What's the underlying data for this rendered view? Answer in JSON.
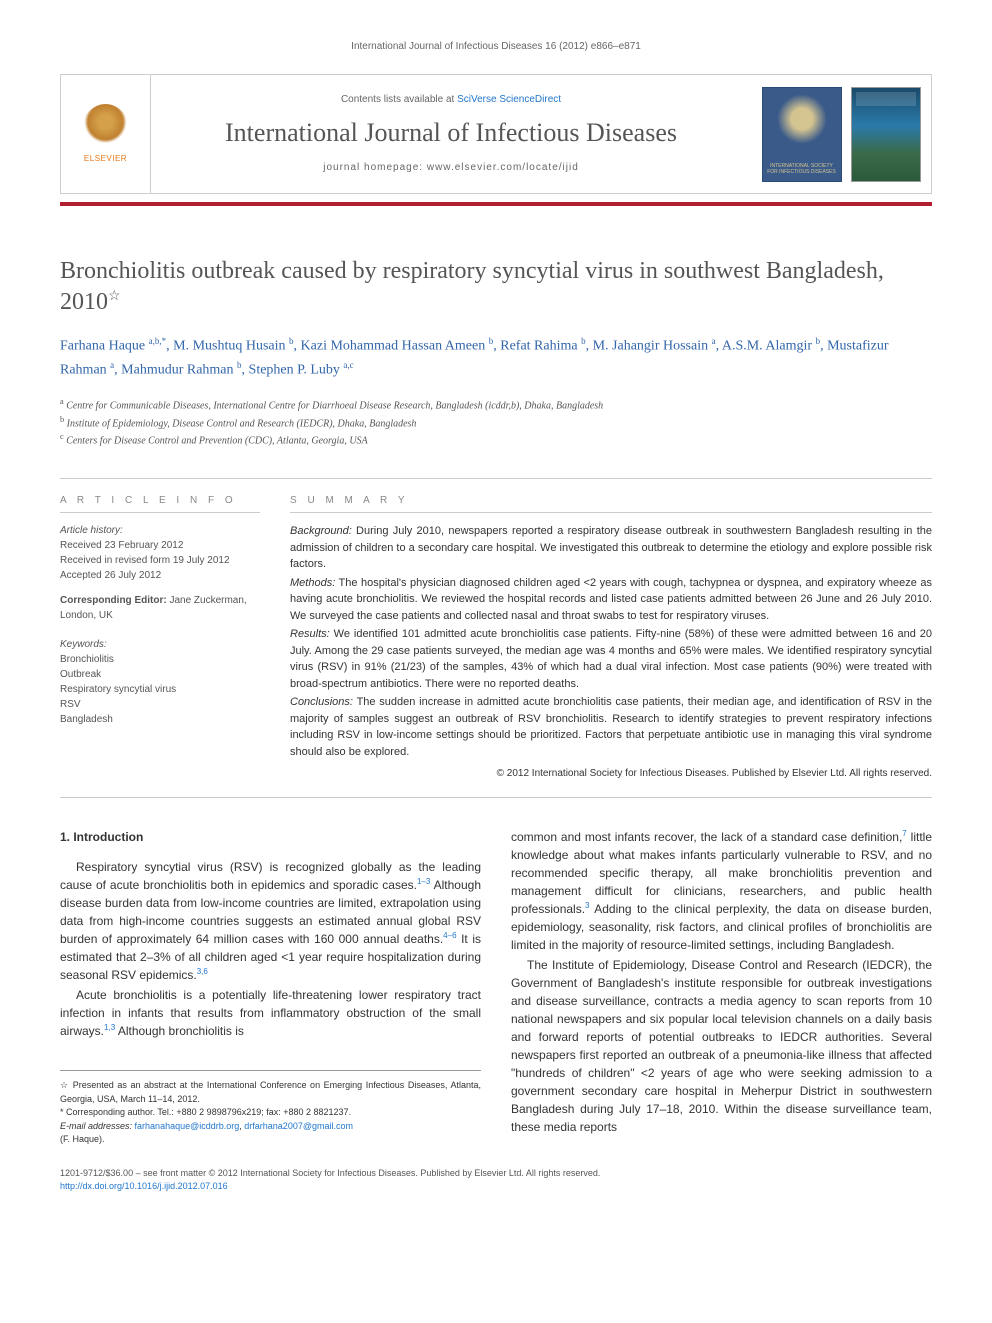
{
  "running_header": "International Journal of Infectious Diseases 16 (2012) e866–e871",
  "masthead": {
    "contents_prefix": "Contents lists available at ",
    "contents_link": "SciVerse ScienceDirect",
    "journal_name": "International Journal of Infectious Diseases",
    "homepage_prefix": "journal homepage: ",
    "homepage_url": "www.elsevier.com/locate/ijid",
    "elsevier_label": "ELSEVIER",
    "society_label": "INTERNATIONAL SOCIETY FOR INFECTIOUS DISEASES"
  },
  "title": "Bronchiolitis outbreak caused by respiratory syncytial virus in southwest Bangladesh, 2010",
  "title_star": "☆",
  "authors_html": "Farhana Haque <sup>a,b,*</sup>, M. Mushtuq Husain <sup>b</sup>, Kazi Mohammad Hassan Ameen <sup>b</sup>, Refat Rahima <sup>b</sup>, M. Jahangir Hossain <sup>a</sup>, A.S.M. Alamgir <sup>b</sup>, Mustafizur Rahman <sup>a</sup>, Mahmudur Rahman <sup>b</sup>, Stephen P. Luby <sup>a,c</sup>",
  "affiliations": [
    "a Centre for Communicable Diseases, International Centre for Diarrhoeal Disease Research, Bangladesh (icddr,b), Dhaka, Bangladesh",
    "b Institute of Epidemiology, Disease Control and Research (IEDCR), Dhaka, Bangladesh",
    "c Centers for Disease Control and Prevention (CDC), Atlanta, Georgia, USA"
  ],
  "article_info": {
    "heading": "A R T I C L E  I N F O",
    "history_label": "Article history:",
    "received": "Received 23 February 2012",
    "revised": "Received in revised form 19 July 2012",
    "accepted": "Accepted 26 July 2012",
    "editor_label": "Corresponding Editor:",
    "editor": " Jane Zuckerman, London, UK",
    "keywords_label": "Keywords:",
    "keywords": [
      "Bronchiolitis",
      "Outbreak",
      "Respiratory syncytial virus",
      "RSV",
      "Bangladesh"
    ]
  },
  "summary": {
    "heading": "S U M M A R Y",
    "background_label": "Background:",
    "background": " During July 2010, newspapers reported a respiratory disease outbreak in southwestern Bangladesh resulting in the admission of children to a secondary care hospital. We investigated this outbreak to determine the etiology and explore possible risk factors.",
    "methods_label": "Methods:",
    "methods": " The hospital's physician diagnosed children aged <2 years with cough, tachypnea or dyspnea, and expiratory wheeze as having acute bronchiolitis. We reviewed the hospital records and listed case patients admitted between 26 June and 26 July 2010. We surveyed the case patients and collected nasal and throat swabs to test for respiratory viruses.",
    "results_label": "Results:",
    "results": " We identified 101 admitted acute bronchiolitis case patients. Fifty-nine (58%) of these were admitted between 16 and 20 July. Among the 29 case patients surveyed, the median age was 4 months and 65% were males. We identified respiratory syncytial virus (RSV) in 91% (21/23) of the samples, 43% of which had a dual viral infection. Most case patients (90%) were treated with broad-spectrum antibiotics. There were no reported deaths.",
    "conclusions_label": "Conclusions:",
    "conclusions": " The sudden increase in admitted acute bronchiolitis case patients, their median age, and identification of RSV in the majority of samples suggest an outbreak of RSV bronchiolitis. Research to identify strategies to prevent respiratory infections including RSV in low-income settings should be prioritized. Factors that perpetuate antibiotic use in managing this viral syndrome should also be explored.",
    "copyright": "© 2012 International Society for Infectious Diseases. Published by Elsevier Ltd. All rights reserved."
  },
  "body": {
    "section1_heading": "1. Introduction",
    "col1_p1": "Respiratory syncytial virus (RSV) is recognized globally as the leading cause of acute bronchiolitis both in epidemics and sporadic cases.<sup>1–3</sup> Although disease burden data from low-income countries are limited, extrapolation using data from high-income countries suggests an estimated annual global RSV burden of approximately 64 million cases with 160 000 annual deaths.<sup>4–6</sup> It is estimated that 2–3% of all children aged <1 year require hospitalization during seasonal RSV epidemics.<sup>3,6</sup>",
    "col1_p2": "Acute bronchiolitis is a potentially life-threatening lower respiratory tract infection in infants that results from inflammatory obstruction of the small airways.<sup>1,3</sup> Although bronchiolitis is",
    "col2_p1": "common and most infants recover, the lack of a standard case definition,<sup>7</sup> little knowledge about what makes infants particularly vulnerable to RSV, and no recommended specific therapy, all make bronchiolitis prevention and management difficult for clinicians, researchers, and public health professionals.<sup>3</sup> Adding to the clinical perplexity, the data on disease burden, epidemiology, seasonality, risk factors, and clinical profiles of bronchiolitis are limited in the majority of resource-limited settings, including Bangladesh.",
    "col2_p2": "The Institute of Epidemiology, Disease Control and Research (IEDCR), the Government of Bangladesh's institute responsible for outbreak investigations and disease surveillance, contracts a media agency to scan reports from 10 national newspapers and six popular local television channels on a daily basis and forward reports of potential outbreaks to IEDCR authorities. Several newspapers first reported an outbreak of a pneumonia-like illness that affected \"hundreds of children\" <2 years of age who were seeking admission to a government secondary care hospital in Meherpur District in southwestern Bangladesh during July 17–18, 2010. Within the disease surveillance team, these media reports"
  },
  "footnotes": {
    "star": "☆ Presented as an abstract at the International Conference on Emerging Infectious Diseases, Atlanta, Georgia, USA, March 11–14, 2012.",
    "corr": "* Corresponding author. Tel.: +880 2 9898796x219; fax: +880 2 8821237.",
    "email_label": "E-mail addresses:",
    "email1": "farhanahaque@icddrb.org",
    "email2": "drfarhana2007@gmail.com",
    "email_suffix": "(F. Haque)."
  },
  "bottom": {
    "line1": "1201-9712/$36.00 – see front matter © 2012 International Society for Infectious Diseases. Published by Elsevier Ltd. All rights reserved.",
    "doi": "http://dx.doi.org/10.1016/j.ijid.2012.07.016"
  },
  "colors": {
    "link": "#2277cc",
    "divider": "#b02030",
    "title_grey": "#555555",
    "author_blue": "#3366aa"
  }
}
